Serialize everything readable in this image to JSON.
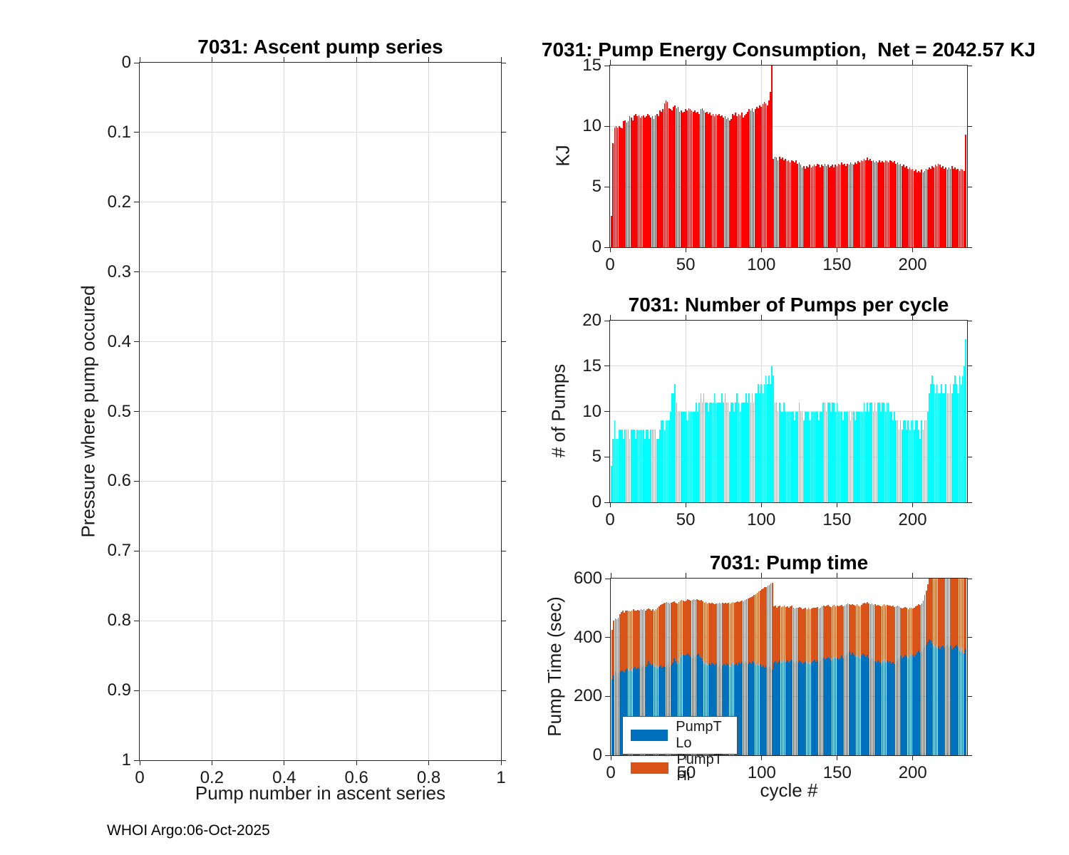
{
  "figure": {
    "footer": "WHOI Argo:06-Oct-2025",
    "background": "#ffffff",
    "float_id": "7031",
    "net_energy_kj": "2042.57"
  },
  "colors": {
    "axis": "#262626",
    "grid": "#dcdcdc",
    "energy_bar": "#ff0000",
    "pumps_bar": "#00ffff",
    "pump_lo": "#0072bd",
    "pump_hi": "#d95319"
  },
  "chart_data": [
    {
      "id": "ascent",
      "type": "bar",
      "title": "7031: Ascent pump series",
      "xlabel": "Pump number in ascent series",
      "ylabel": "Pressure where pump occured",
      "xlim": [
        0,
        1
      ],
      "ylim": [
        0,
        1
      ],
      "y_reversed": true,
      "grid": true,
      "legend_position": "none",
      "xtick_vals": [
        0,
        0.2,
        0.4,
        0.6,
        0.8,
        1
      ],
      "xtick_labels": [
        "0",
        "0.2",
        "0.4",
        "0.6",
        "0.8",
        "1"
      ],
      "ytick_vals": [
        0,
        0.1,
        0.2,
        0.3,
        0.4,
        0.5,
        0.6,
        0.7,
        0.8,
        0.9,
        1
      ],
      "ytick_labels": [
        "0",
        "0.1",
        "0.2",
        "0.3",
        "0.4",
        "0.5",
        "0.6",
        "0.7",
        "0.8",
        "0.9",
        "1"
      ],
      "values": []
    },
    {
      "id": "energy",
      "type": "bar",
      "title": "7031: Pump Energy Consumption,  Net = 2042.57 KJ",
      "xlabel": "",
      "ylabel": "KJ",
      "xlim": [
        0,
        236
      ],
      "ylim": [
        0,
        15
      ],
      "grid": true,
      "bar_color": "#ff0000",
      "xtick_vals": [
        0,
        50,
        100,
        150,
        200
      ],
      "xtick_labels": [
        "0",
        "50",
        "100",
        "150",
        "200"
      ],
      "ytick_vals": [
        0,
        5,
        10,
        15
      ],
      "ytick_labels": [
        "0",
        "5",
        "10",
        "15"
      ],
      "values": [
        2.6,
        8.6,
        9.9,
        10.0,
        9.9,
        10.0,
        9.9,
        9.8,
        10.4,
        10.5,
        10.3,
        10.4,
        10.8,
        10.7,
        10.5,
        10.9,
        11.0,
        10.8,
        10.9,
        10.7,
        10.8,
        10.9,
        10.7,
        10.8,
        11.0,
        10.9,
        10.7,
        10.8,
        10.6,
        10.9,
        11.0,
        10.8,
        11.3,
        11.2,
        11.4,
        11.9,
        12.1,
        12.0,
        11.5,
        11.4,
        11.3,
        11.6,
        11.7,
        11.5,
        11.6,
        11.2,
        11.3,
        11.1,
        11.2,
        11.4,
        11.3,
        11.5,
        11.4,
        11.3,
        11.2,
        11.3,
        11.1,
        11.2,
        11.0,
        11.4,
        11.5,
        11.3,
        11.1,
        11.2,
        11.0,
        11.1,
        10.9,
        11.0,
        10.8,
        11.0,
        10.9,
        11.0,
        10.8,
        10.9,
        10.7,
        10.8,
        10.6,
        10.7,
        10.5,
        10.6,
        11.0,
        10.9,
        11.1,
        10.8,
        11.0,
        10.9,
        11.1,
        10.7,
        10.9,
        11.0,
        11.2,
        11.4,
        11.3,
        11.5,
        11.2,
        11.4,
        11.6,
        11.5,
        11.7,
        11.6,
        11.8,
        12.0,
        11.9,
        11.7,
        12.1,
        12.8,
        15.5,
        7.3,
        7.5,
        7.4,
        7.2,
        7.5,
        7.3,
        7.4,
        7.2,
        7.3,
        7.1,
        7.2,
        7.0,
        7.2,
        7.1,
        7.0,
        7.2,
        6.9,
        7.0,
        6.8,
        6.6,
        6.7,
        6.5,
        6.7,
        6.6,
        6.8,
        6.6,
        6.7,
        6.8,
        6.7,
        6.9,
        6.8,
        6.6,
        6.8,
        6.7,
        6.9,
        6.7,
        6.8,
        6.6,
        6.7,
        6.8,
        6.6,
        6.8,
        6.7,
        6.9,
        6.8,
        7.0,
        6.8,
        6.9,
        6.7,
        6.9,
        6.8,
        7.0,
        6.9,
        6.8,
        7.0,
        6.9,
        7.1,
        7.0,
        7.2,
        7.1,
        7.3,
        7.2,
        7.4,
        7.2,
        7.3,
        7.1,
        7.2,
        7.0,
        7.1,
        7.0,
        7.2,
        7.0,
        7.1,
        7.0,
        7.2,
        7.1,
        7.0,
        7.2,
        7.1,
        7.0,
        7.1,
        6.9,
        7.0,
        6.8,
        6.9,
        6.7,
        6.8,
        6.6,
        6.7,
        6.5,
        6.6,
        6.4,
        6.5,
        6.3,
        6.4,
        6.2,
        6.3,
        6.2,
        6.4,
        6.2,
        6.3,
        6.5,
        6.4,
        6.6,
        6.5,
        6.7,
        6.6,
        6.8,
        6.7,
        6.9,
        6.8,
        6.6,
        6.7,
        6.5,
        6.6,
        6.4,
        6.6,
        6.5,
        6.7,
        6.5,
        6.6,
        6.4,
        6.5,
        6.3,
        6.5,
        6.4,
        6.3,
        9.3
      ]
    },
    {
      "id": "pumps",
      "type": "bar",
      "title": "7031: Number of Pumps per cycle",
      "xlabel": "",
      "ylabel": "# of Pumps",
      "xlim": [
        0,
        236
      ],
      "ylim": [
        0,
        20
      ],
      "grid": true,
      "bar_color": "#00ffff",
      "xtick_vals": [
        0,
        50,
        100,
        150,
        200
      ],
      "xtick_labels": [
        "0",
        "50",
        "100",
        "150",
        "200"
      ],
      "ytick_vals": [
        0,
        5,
        10,
        15,
        20
      ],
      "ytick_labels": [
        "0",
        "5",
        "10",
        "15",
        "20"
      ],
      "values": [
        4,
        7,
        9,
        7,
        7,
        8,
        8,
        8,
        7,
        8,
        8,
        8,
        7,
        8,
        8,
        8,
        7,
        8,
        8,
        8,
        8,
        8,
        7,
        8,
        8,
        7,
        8,
        8,
        8,
        8,
        7,
        7,
        8,
        9,
        9,
        8,
        9,
        9,
        9,
        10,
        12,
        12,
        13,
        11,
        10,
        10,
        10,
        10,
        10,
        10,
        9,
        10,
        10,
        10,
        10,
        10,
        11,
        10,
        11,
        12,
        11,
        12,
        11,
        11,
        10,
        11,
        11,
        11,
        12,
        11,
        11,
        11,
        11,
        12,
        11,
        12,
        11,
        11,
        10,
        11,
        11,
        10,
        11,
        12,
        11,
        10,
        11,
        11,
        11,
        12,
        11,
        12,
        11,
        12,
        11,
        12,
        12,
        13,
        12,
        13,
        12,
        13,
        14,
        13,
        14,
        13,
        15,
        14,
        11,
        11,
        10,
        11,
        10,
        10,
        11,
        10,
        10,
        10,
        10,
        10,
        10,
        9,
        10,
        10,
        11,
        10,
        10,
        9,
        10,
        10,
        10,
        9,
        10,
        10,
        10,
        10,
        10,
        9,
        10,
        10,
        11,
        11,
        10,
        11,
        11,
        10,
        11,
        11,
        10,
        11,
        10,
        10,
        10,
        9,
        10,
        10,
        10,
        10,
        9,
        10,
        10,
        9,
        10,
        10,
        10,
        10,
        10,
        11,
        10,
        11,
        10,
        11,
        11,
        10,
        11,
        10,
        11,
        11,
        10,
        11,
        11,
        10,
        11,
        11,
        10,
        10,
        9,
        10,
        9,
        9,
        8,
        9,
        8,
        9,
        9,
        8,
        9,
        8,
        9,
        9,
        8,
        9,
        9,
        8,
        7,
        9,
        8,
        9,
        9,
        10,
        12,
        13,
        14,
        13,
        12,
        13,
        12,
        12,
        13,
        12,
        12,
        13,
        12,
        12,
        13,
        12,
        13,
        14,
        13,
        12,
        14,
        13,
        14,
        15,
        18
      ]
    },
    {
      "id": "time",
      "type": "stacked-bar",
      "title": "7031: Pump time",
      "xlabel": "cycle #",
      "ylabel": "Pump Time (sec)",
      "xlim": [
        0,
        236
      ],
      "ylim": [
        0,
        600
      ],
      "grid": true,
      "legend_position": "southwest",
      "xtick_vals": [
        0,
        50,
        100,
        150,
        200
      ],
      "xtick_labels": [
        "0",
        "50",
        "100",
        "150",
        "200"
      ],
      "ytick_vals": [
        0,
        200,
        400,
        600
      ],
      "ytick_labels": [
        "0",
        "200",
        "400",
        "600"
      ],
      "series": [
        {
          "name": "PumpT Lo",
          "color": "#0072bd",
          "values": [
            260,
            270,
            285,
            272,
            278,
            282,
            288,
            285,
            280,
            290,
            295,
            288,
            292,
            285,
            295,
            300,
            292,
            298,
            295,
            302,
            298,
            305,
            300,
            308,
            320,
            312,
            305,
            310,
            300,
            308,
            295,
            300,
            305,
            298,
            302,
            300,
            305,
            310,
            300,
            308,
            315,
            330,
            320,
            310,
            318,
            335,
            345,
            340,
            338,
            342,
            345,
            340,
            335,
            330,
            338,
            332,
            340,
            345,
            335,
            330,
            320,
            310,
            318,
            305,
            312,
            308,
            315,
            310,
            305,
            312,
            300,
            308,
            295,
            305,
            310,
            305,
            312,
            308,
            300,
            310,
            315,
            308,
            312,
            305,
            315,
            310,
            318,
            312,
            320,
            315,
            310,
            318,
            312,
            320,
            315,
            308,
            312,
            305,
            310,
            300,
            305,
            298,
            302,
            295,
            300,
            295,
            290,
            315,
            320,
            312,
            318,
            322,
            315,
            320,
            325,
            318,
            322,
            315,
            320,
            325,
            318,
            312,
            320,
            315,
            322,
            318,
            310,
            315,
            320,
            312,
            318,
            310,
            315,
            320,
            325,
            318,
            322,
            315,
            320,
            328,
            332,
            325,
            330,
            335,
            328,
            322,
            330,
            335,
            328,
            332,
            325,
            330,
            338,
            330,
            335,
            340,
            345,
            350,
            342,
            348,
            340,
            335,
            342,
            336,
            330,
            338,
            345,
            340,
            335,
            342,
            330,
            325,
            332,
            326,
            320,
            315,
            322,
            318,
            312,
            320,
            325,
            318,
            322,
            315,
            320,
            312,
            318,
            310,
            315,
            322,
            330,
            338,
            330,
            335,
            342,
            336,
            330,
            338,
            345,
            340,
            335,
            342,
            348,
            355,
            348,
            352,
            360,
            368,
            375,
            385,
            395,
            390,
            380,
            370,
            375,
            365,
            370,
            360,
            368,
            372,
            365,
            370,
            375,
            368,
            372,
            360,
            365,
            370,
            375,
            368,
            355,
            362,
            350,
            345,
            360
          ]
        },
        {
          "name": "PumpT Hi",
          "color": "#d95319",
          "values": [
            165,
            188,
            180,
            190,
            190,
            198,
            199,
            205,
            205,
            202,
            195,
            204,
            196,
            205,
            200,
            192,
            198,
            196,
            197,
            194,
            196,
            190,
            192,
            188,
            178,
            183,
            187,
            186,
            190,
            189,
            205,
            205,
            205,
            214,
            213,
            218,
            215,
            208,
            215,
            209,
            205,
            192,
            198,
            205,
            202,
            190,
            183,
            185,
            184,
            184,
            185,
            188,
            190,
            198,
            192,
            195,
            190,
            183,
            190,
            197,
            202,
            208,
            202,
            210,
            206,
            207,
            203,
            205,
            207,
            204,
            215,
            210,
            220,
            213,
            205,
            212,
            203,
            210,
            215,
            207,
            205,
            210,
            208,
            217,
            205,
            213,
            207,
            210,
            208,
            215,
            222,
            217,
            226,
            220,
            230,
            240,
            240,
            251,
            250,
            263,
            261,
            272,
            270,
            280,
            278,
            287,
            295,
            190,
            188,
            190,
            187,
            186,
            188,
            186,
            183,
            186,
            184,
            187,
            185,
            182,
            182,
            186,
            182,
            185,
            181,
            182,
            186,
            183,
            180,
            185,
            182,
            185,
            183,
            180,
            177,
            182,
            181,
            184,
            182,
            177,
            176,
            180,
            177,
            175,
            178,
            181,
            178,
            175,
            177,
            176,
            180,
            178,
            172,
            176,
            174,
            172,
            170,
            162,
            168,
            166,
            170,
            173,
            170,
            173,
            176,
            172,
            170,
            178,
            180,
            178,
            186,
            187,
            183,
            184,
            192,
            193,
            188,
            189,
            193,
            189,
            187,
            190,
            188,
            192,
            189,
            193,
            189,
            193,
            190,
            186,
            175,
            164,
            168,
            165,
            161,
            164,
            167,
            162,
            157,
            158,
            165,
            163,
            160,
            157,
            162,
            163,
            165,
            177,
            185,
            195,
            205,
            230,
            260,
            280,
            265,
            265,
            275,
            275,
            282,
            268,
            290,
            275,
            275,
            272,
            283,
            285,
            285,
            270,
            280,
            277,
            295,
            278,
            305,
            305,
            300
          ]
        }
      ]
    }
  ]
}
